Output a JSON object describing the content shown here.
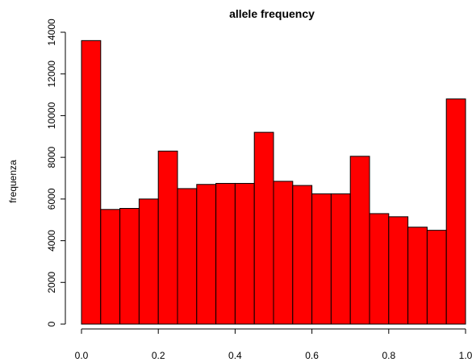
{
  "chart_data": {
    "type": "bar",
    "title": "allele frequency",
    "xlabel": "",
    "ylabel": "frequenza",
    "bin_edges": [
      0.0,
      0.05,
      0.1,
      0.15,
      0.2,
      0.25,
      0.3,
      0.35,
      0.4,
      0.45,
      0.5,
      0.55,
      0.6,
      0.65,
      0.7,
      0.75,
      0.8,
      0.85,
      0.9,
      0.95,
      1.0
    ],
    "values": [
      13600,
      5500,
      5550,
      6000,
      8300,
      6500,
      6700,
      6750,
      6750,
      9200,
      6850,
      6650,
      6250,
      6250,
      8050,
      5300,
      5150,
      4650,
      4500,
      10800
    ],
    "xlim": [
      0.0,
      1.0
    ],
    "ylim": [
      0,
      14000
    ],
    "x_ticks": [
      "0.0",
      "0.2",
      "0.4",
      "0.6",
      "0.8",
      "1.0"
    ],
    "y_ticks": [
      "0",
      "2000",
      "4000",
      "6000",
      "8000",
      "10000",
      "12000",
      "14000"
    ],
    "bar_color": "#ff0000",
    "grid": false
  }
}
